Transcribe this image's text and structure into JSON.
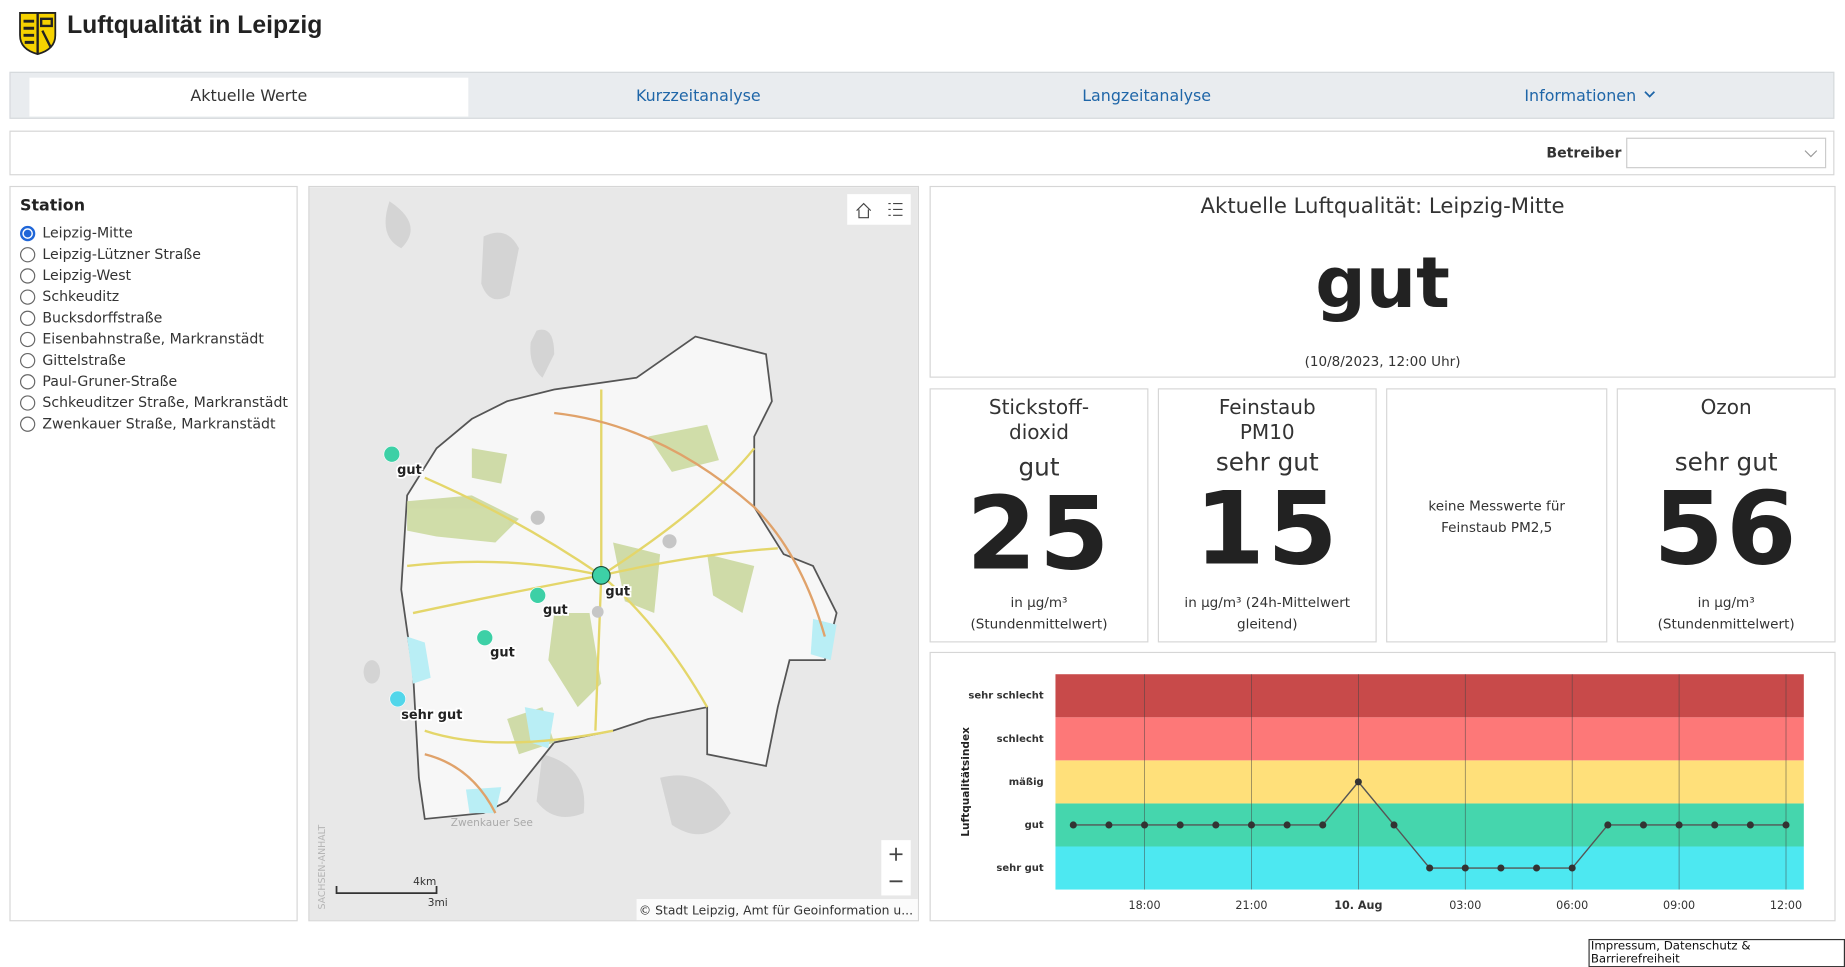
{
  "header": {
    "title": "Luftqualität in Leipzig"
  },
  "tabs": [
    "Aktuelle Werte",
    "Kurzzeitanalyse",
    "Langzeitanalyse",
    "Informationen"
  ],
  "filter": {
    "label": "Betreiber"
  },
  "stations": {
    "title": "Station",
    "items": [
      "Leipzig-Mitte",
      "Leipzig-Lützner Straße",
      "Leipzig-West",
      "Schkeuditz",
      "Bucksdorffstraße",
      "Eisenbahnstraße, Markranstädt",
      "Gittelstraße",
      "Paul-Gruner-Straße",
      "Schkeuditzer Straße, Markranstädt",
      "Zwenkauer Straße, Markranstädt"
    ]
  },
  "map": {
    "markers": [
      {
        "label": "gut",
        "color": "#3dd0a6"
      },
      {
        "label": "gut",
        "color": "#3dd0a6"
      },
      {
        "label": "gut",
        "color": "#3dd0a6"
      },
      {
        "label": "gut",
        "color": "#3dd0a6"
      },
      {
        "label": "sehr gut",
        "color": "#52d6ea"
      }
    ],
    "place_label": "Zwenkauer See",
    "region_label": "SACHSEN-ANHALT",
    "scale": [
      "4km",
      "3mi"
    ],
    "attribution": "© Stadt Leipzig, Amt für Geoinformation u..."
  },
  "summary": {
    "title": "Aktuelle Luftqualität: Leipzig-Mitte",
    "rating": "gut",
    "timestamp": "(10/8/2023, 12:00 Uhr)"
  },
  "tiles": [
    {
      "title": "Stickstoff-dioxid",
      "rating": "gut",
      "value": "25",
      "unit": "in µg/m³ (Stundenmittelwert)"
    },
    {
      "title": "Feinstaub PM10",
      "rating": "sehr gut",
      "value": "15",
      "unit": "in µg/m³ (24h-Mittelwert gleitend)"
    },
    {
      "note": "keine Messwerte für Feinstaub PM2,5"
    },
    {
      "title": "Ozon",
      "rating": "sehr gut",
      "value": "56",
      "unit": "in µg/m³ (Stundenmittelwert)"
    }
  ],
  "footer": {
    "link": "Impressum, Datenschutz & Barrierefreiheit"
  },
  "chart_data": {
    "type": "line",
    "y_label": "Luftqualitätsindex",
    "categories": [
      null,
      null,
      "18:00",
      null,
      null,
      "21:00",
      null,
      null,
      "10. Aug",
      null,
      null,
      "03:00",
      null,
      null,
      "06:00",
      null,
      null,
      "09:00",
      null,
      null,
      "12:00"
    ],
    "values": [
      2,
      2,
      2,
      2,
      2,
      2,
      2,
      2,
      3,
      2,
      1,
      1,
      1,
      1,
      1,
      2,
      2,
      2,
      2,
      2,
      2
    ],
    "color": "#555555",
    "ylim": [
      0.5,
      5.5
    ],
    "yticks": [
      {
        "value": 1,
        "label": "sehr gut"
      },
      {
        "value": 2,
        "label": "gut"
      },
      {
        "value": 3,
        "label": "mäßig"
      },
      {
        "value": 4,
        "label": "schlecht"
      },
      {
        "value": 5,
        "label": "sehr schlecht"
      }
    ],
    "band_colors": [
      "#4de8f1",
      "#45d6ad",
      "#ffe07a",
      "#fd7878",
      "#c84a4a"
    ]
  }
}
